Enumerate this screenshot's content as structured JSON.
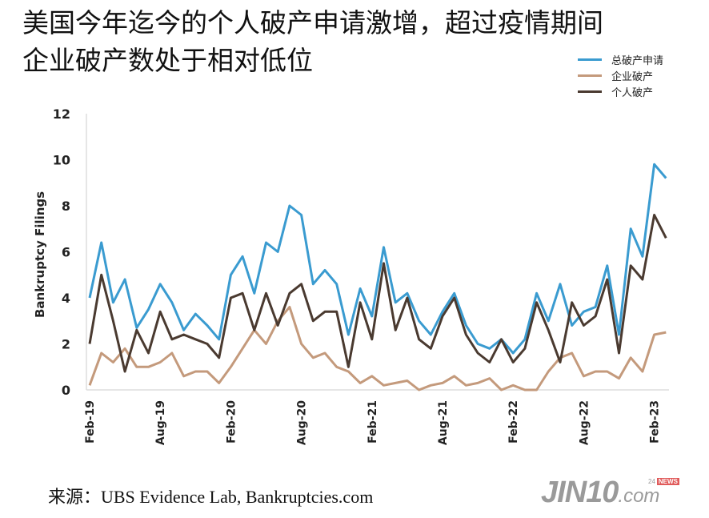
{
  "title_line1": "美国今年迄今的个人破产申请激增，超过疫情期间",
  "title_line2": "企业破产数处于相对低位",
  "source": "来源：UBS Evidence Lab, Bankruptcies.com",
  "logo": {
    "main": "JIN10",
    "suffix": ".com",
    "badge_num": "24",
    "badge_text": "NEWS"
  },
  "chart_data": {
    "type": "line",
    "title": "美国今年迄今的个人破产申请激增，超过疫情期间企业破产数处于相对低位",
    "xlabel": "",
    "ylabel": "Bankruptcy Filings",
    "ylim": [
      0,
      12
    ],
    "yticks": [
      "0",
      "2",
      "4",
      "6",
      "8",
      "10",
      "12"
    ],
    "xticks": [
      "Feb-19",
      "Aug-19",
      "Feb-20",
      "Aug-20",
      "Feb-21",
      "Aug-21",
      "Feb-22",
      "Aug-22",
      "Feb-23"
    ],
    "x_start": "Feb-19",
    "x_step": "month",
    "legend_position": "top-right",
    "grid": false,
    "series": [
      {
        "name": "总破产申请",
        "color": "#3a9bd0",
        "values": [
          4.0,
          6.4,
          3.8,
          4.8,
          2.7,
          3.5,
          4.6,
          3.8,
          2.6,
          3.3,
          2.8,
          2.2,
          5.0,
          5.8,
          4.2,
          6.4,
          6.0,
          8.0,
          7.6,
          4.6,
          5.2,
          4.6,
          2.4,
          4.4,
          3.2,
          6.2,
          3.8,
          4.2,
          3.0,
          2.4,
          3.4,
          4.2,
          2.8,
          2.0,
          1.8,
          2.2,
          1.6,
          2.2,
          4.2,
          3.0,
          4.6,
          2.8,
          3.4,
          3.6,
          5.4,
          2.4,
          7.0,
          5.8,
          9.8,
          9.2
        ]
      },
      {
        "name": "企业破产",
        "color": "#c49a7c",
        "values": [
          0.2,
          1.6,
          1.2,
          1.8,
          1.0,
          1.0,
          1.2,
          1.6,
          0.6,
          0.8,
          0.8,
          0.3,
          1.0,
          1.8,
          2.6,
          2.0,
          3.0,
          3.6,
          2.0,
          1.4,
          1.6,
          1.0,
          0.8,
          0.3,
          0.6,
          0.2,
          0.3,
          0.4,
          0.0,
          0.2,
          0.3,
          0.6,
          0.2,
          0.3,
          0.5,
          0.0,
          0.2,
          0.0,
          0.0,
          0.8,
          1.4,
          1.6,
          0.6,
          0.8,
          0.8,
          0.5,
          1.4,
          0.8,
          2.4,
          2.5
        ]
      },
      {
        "name": "个人破产",
        "color": "#4a3a30",
        "values": [
          2.0,
          5.0,
          3.0,
          0.8,
          2.6,
          1.6,
          3.4,
          2.2,
          2.4,
          2.2,
          2.0,
          1.4,
          4.0,
          4.2,
          2.6,
          4.2,
          2.8,
          4.2,
          4.6,
          3.0,
          3.4,
          3.4,
          1.0,
          3.8,
          2.2,
          5.5,
          2.6,
          4.0,
          2.2,
          1.8,
          3.2,
          4.0,
          2.4,
          1.6,
          1.2,
          2.2,
          1.2,
          1.8,
          3.8,
          2.6,
          1.2,
          3.8,
          2.8,
          3.2,
          4.8,
          1.6,
          5.4,
          4.8,
          7.6,
          6.6
        ]
      }
    ]
  }
}
